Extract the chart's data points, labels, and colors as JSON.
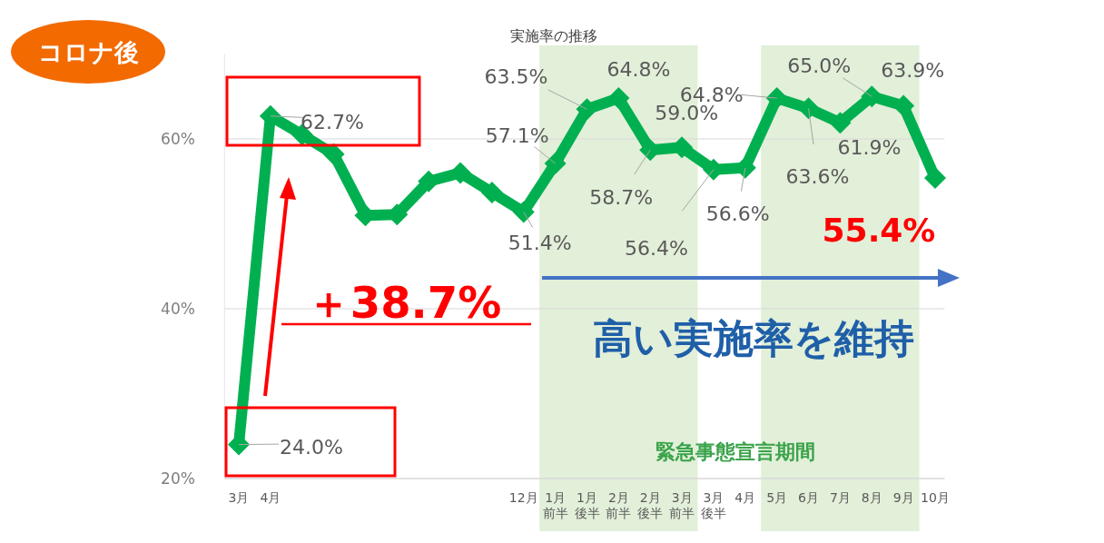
{
  "chart_data": {
    "type": "line",
    "title": "実施率の推移",
    "categories": [
      "3月",
      "4月",
      null,
      null,
      null,
      null,
      null,
      null,
      null,
      "12月",
      "1月前半",
      "1月後半",
      "2月前半",
      "2月後半",
      "3月前半",
      "3月後半",
      "4月",
      "5月",
      "6月",
      "7月",
      "8月",
      "9月",
      "10月"
    ],
    "series": [
      {
        "color": "#00b050",
        "values": [
          24.0,
          62.7,
          60.5,
          58.2,
          51.0,
          51.1,
          55.0,
          56.0,
          53.7,
          51.4,
          57.1,
          63.5,
          64.8,
          58.7,
          59.0,
          56.4,
          56.6,
          64.8,
          63.6,
          61.9,
          65.0,
          63.9,
          55.4
        ],
        "value_labels": [
          "24.0%",
          "62.7%",
          null,
          null,
          null,
          null,
          null,
          null,
          null,
          "51.4%",
          "57.1%",
          "63.5%",
          "64.8%",
          "58.7%",
          "59.0%",
          "56.4%",
          "56.6%",
          "64.8%",
          "63.6%",
          "61.9%",
          "65.0%",
          "63.9%",
          null
        ]
      }
    ],
    "ylim": [
      20,
      70
    ],
    "yticks": [
      {
        "value": 20,
        "label": "20%"
      },
      {
        "value": 40,
        "label": "40%"
      },
      {
        "value": 60,
        "label": "60%"
      }
    ],
    "grid": "y",
    "marker": "diamond",
    "bands": [
      {
        "axis": "x",
        "from": "1月前半",
        "to": "3月前半",
        "color": "#e2efd9"
      },
      {
        "axis": "x",
        "from": "5月",
        "to": "9月",
        "color": "#e2efd9"
      }
    ],
    "annotations": [
      "コロナ後",
      "＋38.7%",
      "高い実施率を維持",
      "緊急事態宣言期間",
      {
        "text": "55.4%",
        "x": "10月",
        "y": 55.4
      }
    ]
  }
}
